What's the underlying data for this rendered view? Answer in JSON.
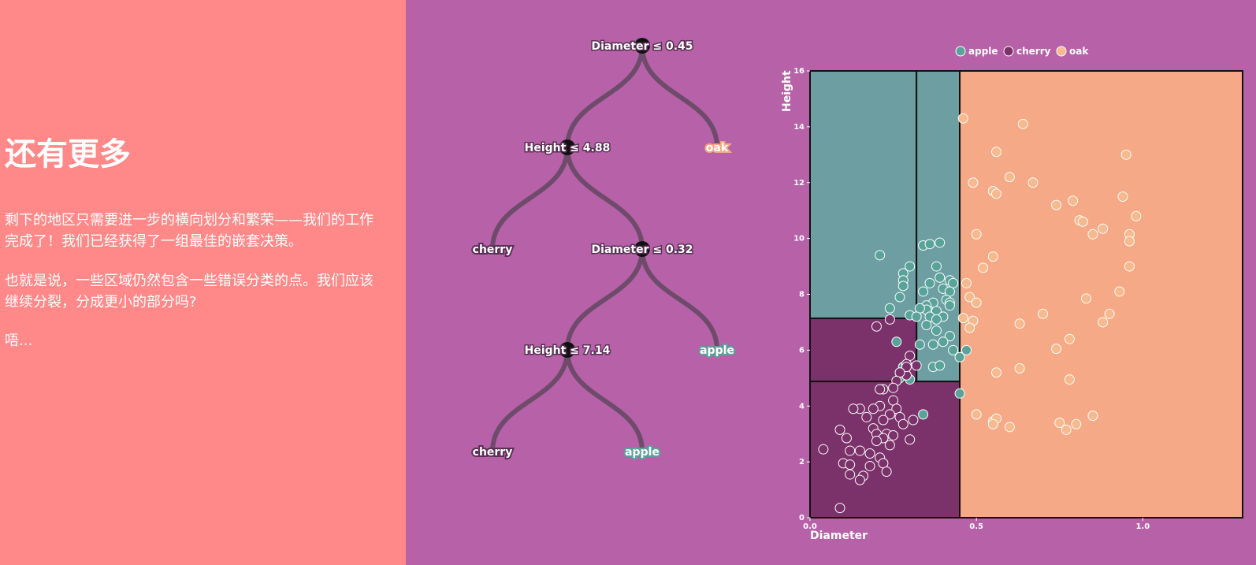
{
  "text": {
    "title": "还有更多",
    "para1": "剩下的地区只需要进一步的横向划分和繁荣——我们的工作完成了！我们已经获得了一组最佳的嵌套决策。",
    "para2": "也就是说，一些区域仍然包含一些错误分类的点。我们应该继续分裂，分成更小的部分吗?",
    "para3": "唔..."
  },
  "colors": {
    "left_bg": "#ff8888",
    "right_bg": "#b761a8",
    "apple": "#6c9ea2",
    "apple_point": "#5aa39a",
    "cherry": "#7b3169",
    "oak": "#f5a987",
    "oak_point": "#f7b98e",
    "link": "#6e4b6a"
  },
  "tree": {
    "nodes": [
      {
        "id": "n0",
        "label": "Diameter ≤ 0.45",
        "type": "split"
      },
      {
        "id": "n1",
        "label": "Height ≤ 4.88",
        "type": "split",
        "parent": "n0"
      },
      {
        "id": "n2",
        "label": "oak",
        "type": "leaf",
        "class": "oak",
        "parent": "n0"
      },
      {
        "id": "n3",
        "label": "cherry",
        "type": "leaf",
        "class": "cherry",
        "parent": "n1"
      },
      {
        "id": "n4",
        "label": "Diameter ≤ 0.32",
        "type": "split",
        "parent": "n1"
      },
      {
        "id": "n5",
        "label": "Height ≤ 7.14",
        "type": "split",
        "parent": "n4"
      },
      {
        "id": "n6",
        "label": "apple",
        "type": "leaf",
        "class": "apple",
        "parent": "n4"
      },
      {
        "id": "n7",
        "label": "cherry",
        "type": "leaf",
        "class": "cherry",
        "parent": "n5"
      },
      {
        "id": "n8",
        "label": "apple",
        "type": "leaf",
        "class": "apple",
        "parent": "n5"
      }
    ]
  },
  "chart_data": {
    "type": "scatter",
    "xlabel": "Diameter",
    "ylabel": "Height",
    "xlim": [
      0,
      1.3
    ],
    "ylim": [
      0,
      16
    ],
    "x_ticks": [
      "0.0",
      "0.5",
      "1.0"
    ],
    "x_tick_values": [
      0,
      0.5,
      1.0
    ],
    "y_ticks": [
      "0",
      "2",
      "4",
      "6",
      "8",
      "10",
      "12",
      "14",
      "16"
    ],
    "y_tick_values": [
      0,
      2,
      4,
      6,
      8,
      10,
      12,
      14,
      16
    ],
    "legend": [
      "apple",
      "cherry",
      "oak"
    ],
    "legend_position": "top-center",
    "grid": false,
    "regions": [
      {
        "class": "apple",
        "x": [
          0,
          0.32
        ],
        "y": [
          7.14,
          16
        ]
      },
      {
        "class": "apple",
        "x": [
          0.32,
          0.45
        ],
        "y": [
          4.88,
          16
        ]
      },
      {
        "class": "cherry",
        "x": [
          0,
          0.32
        ],
        "y": [
          4.88,
          7.14
        ]
      },
      {
        "class": "cherry",
        "x": [
          0,
          0.45
        ],
        "y": [
          0,
          4.88
        ]
      },
      {
        "class": "oak",
        "x": [
          0.45,
          1.3
        ],
        "y": [
          0,
          16
        ]
      }
    ],
    "series": [
      {
        "name": "apple",
        "points": [
          [
            0.21,
            9.4
          ],
          [
            0.3,
            9.0
          ],
          [
            0.34,
            9.75
          ],
          [
            0.36,
            9.8
          ],
          [
            0.39,
            9.85
          ],
          [
            0.28,
            8.75
          ],
          [
            0.28,
            8.5
          ],
          [
            0.28,
            8.3
          ],
          [
            0.36,
            8.4
          ],
          [
            0.39,
            8.6
          ],
          [
            0.42,
            8.5
          ],
          [
            0.43,
            8.4
          ],
          [
            0.38,
            9.0
          ],
          [
            0.4,
            8.2
          ],
          [
            0.34,
            8.1
          ],
          [
            0.42,
            8.1
          ],
          [
            0.27,
            7.9
          ],
          [
            0.37,
            7.7
          ],
          [
            0.41,
            7.8
          ],
          [
            0.42,
            7.7
          ],
          [
            0.35,
            7.6
          ],
          [
            0.35,
            7.45
          ],
          [
            0.33,
            7.5
          ],
          [
            0.38,
            7.4
          ],
          [
            0.4,
            7.2
          ],
          [
            0.24,
            7.5
          ],
          [
            0.3,
            7.25
          ],
          [
            0.32,
            7.2
          ],
          [
            0.36,
            7.2
          ],
          [
            0.38,
            7.1
          ],
          [
            0.35,
            6.9
          ],
          [
            0.38,
            6.7
          ],
          [
            0.42,
            6.5
          ],
          [
            0.37,
            6.2
          ],
          [
            0.4,
            6.3
          ],
          [
            0.43,
            6.0
          ],
          [
            0.33,
            6.2
          ],
          [
            0.26,
            6.3
          ],
          [
            0.47,
            6.0
          ],
          [
            0.45,
            5.75
          ],
          [
            0.28,
            5.4
          ],
          [
            0.37,
            5.4
          ],
          [
            0.39,
            5.45
          ],
          [
            0.27,
            5.0
          ],
          [
            0.3,
            4.95
          ],
          [
            0.45,
            4.45
          ],
          [
            0.34,
            3.7
          ],
          [
            0.42,
            7.6
          ]
        ]
      },
      {
        "name": "cherry",
        "points": [
          [
            0.24,
            7.1
          ],
          [
            0.2,
            6.85
          ],
          [
            0.3,
            5.8
          ],
          [
            0.32,
            5.45
          ],
          [
            0.29,
            5.5
          ],
          [
            0.29,
            5.1
          ],
          [
            0.29,
            5.4
          ],
          [
            0.27,
            5.2
          ],
          [
            0.26,
            4.9
          ],
          [
            0.25,
            4.65
          ],
          [
            0.22,
            4.6
          ],
          [
            0.21,
            4.6
          ],
          [
            0.25,
            4.2
          ],
          [
            0.21,
            4.0
          ],
          [
            0.19,
            3.9
          ],
          [
            0.26,
            3.9
          ],
          [
            0.27,
            3.6
          ],
          [
            0.24,
            3.7
          ],
          [
            0.22,
            3.5
          ],
          [
            0.31,
            3.5
          ],
          [
            0.28,
            3.35
          ],
          [
            0.15,
            3.9
          ],
          [
            0.13,
            3.9
          ],
          [
            0.17,
            3.6
          ],
          [
            0.09,
            3.15
          ],
          [
            0.11,
            2.85
          ],
          [
            0.19,
            3.2
          ],
          [
            0.2,
            3.0
          ],
          [
            0.23,
            3.0
          ],
          [
            0.25,
            2.95
          ],
          [
            0.22,
            2.85
          ],
          [
            0.2,
            2.75
          ],
          [
            0.24,
            2.6
          ],
          [
            0.3,
            2.8
          ],
          [
            0.12,
            2.4
          ],
          [
            0.04,
            2.45
          ],
          [
            0.15,
            2.4
          ],
          [
            0.18,
            2.3
          ],
          [
            0.21,
            2.15
          ],
          [
            0.22,
            1.95
          ],
          [
            0.18,
            1.85
          ],
          [
            0.1,
            1.95
          ],
          [
            0.12,
            1.9
          ],
          [
            0.12,
            1.55
          ],
          [
            0.16,
            1.5
          ],
          [
            0.15,
            1.35
          ],
          [
            0.09,
            0.35
          ],
          [
            0.23,
            1.65
          ]
        ]
      },
      {
        "name": "oak",
        "points": [
          [
            0.46,
            14.3
          ],
          [
            0.56,
            13.1
          ],
          [
            0.6,
            12.2
          ],
          [
            0.49,
            12.0
          ],
          [
            0.55,
            11.7
          ],
          [
            0.56,
            11.6
          ],
          [
            0.67,
            12.0
          ],
          [
            0.64,
            14.1
          ],
          [
            0.74,
            11.2
          ],
          [
            0.79,
            11.35
          ],
          [
            0.81,
            10.65
          ],
          [
            0.82,
            10.6
          ],
          [
            0.85,
            10.15
          ],
          [
            0.88,
            10.35
          ],
          [
            0.95,
            13.0
          ],
          [
            0.96,
            10.15
          ],
          [
            0.96,
            9.9
          ],
          [
            0.98,
            10.8
          ],
          [
            0.94,
            11.5
          ],
          [
            0.96,
            9.0
          ],
          [
            0.5,
            10.15
          ],
          [
            0.55,
            9.35
          ],
          [
            0.52,
            8.95
          ],
          [
            0.47,
            8.4
          ],
          [
            0.48,
            7.9
          ],
          [
            0.5,
            7.7
          ],
          [
            0.46,
            7.15
          ],
          [
            0.49,
            7.05
          ],
          [
            0.48,
            6.8
          ],
          [
            0.63,
            6.95
          ],
          [
            0.7,
            7.3
          ],
          [
            0.74,
            6.05
          ],
          [
            0.78,
            6.4
          ],
          [
            0.83,
            7.85
          ],
          [
            0.88,
            7.0
          ],
          [
            0.9,
            7.3
          ],
          [
            0.93,
            8.1
          ],
          [
            0.56,
            5.2
          ],
          [
            0.63,
            5.35
          ],
          [
            0.78,
            4.95
          ],
          [
            0.5,
            3.7
          ],
          [
            0.55,
            3.45
          ],
          [
            0.56,
            3.55
          ],
          [
            0.55,
            3.35
          ],
          [
            0.6,
            3.25
          ],
          [
            0.75,
            3.4
          ],
          [
            0.77,
            3.15
          ],
          [
            0.8,
            3.35
          ],
          [
            0.85,
            3.65
          ]
        ]
      }
    ]
  }
}
